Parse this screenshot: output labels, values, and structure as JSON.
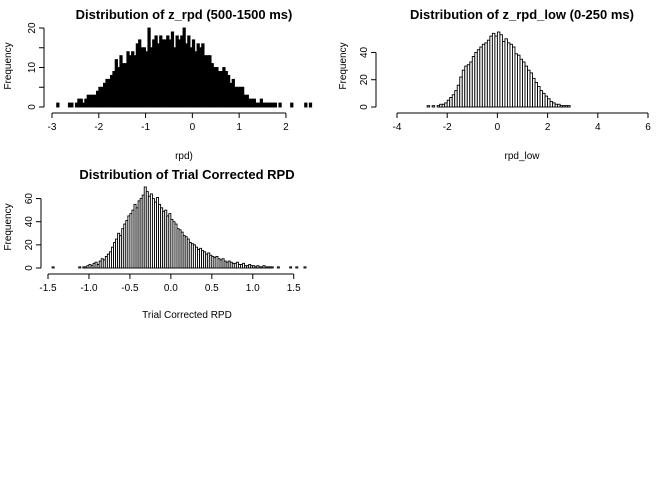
{
  "chart_data": [
    {
      "type": "bar",
      "subtype": "histogram",
      "title": "Distribution of z_rpd (500-1500 ms)",
      "xlabel": "rpd)",
      "ylabel": "Frequency",
      "xlim": [
        -3,
        2.6
      ],
      "ylim": [
        0,
        20
      ],
      "x_ticks": [
        -3,
        -2,
        -1,
        0,
        1,
        2
      ],
      "y_ticks": [
        0,
        10,
        20
      ],
      "y_tick_labels": [
        "0",
        "10",
        "20"
      ],
      "y_ticks_extra": [
        5,
        15
      ],
      "x_axis_end": 2,
      "x_range": [
        -2.9,
        2.6
      ],
      "bin_width": 0.05,
      "fill": "#000000",
      "counts": [
        1,
        0,
        0,
        0,
        0,
        1,
        1,
        0,
        1,
        2,
        2,
        1,
        2,
        3,
        3,
        3,
        3,
        4,
        5,
        5,
        6,
        7,
        7,
        8,
        9,
        12,
        10,
        13,
        11,
        11,
        14,
        13,
        14,
        13,
        16,
        17,
        15,
        15,
        14,
        20,
        15,
        17,
        18,
        16,
        18,
        17,
        17,
        18,
        17,
        19,
        15,
        18,
        17,
        18,
        20,
        16,
        18,
        15,
        17,
        14,
        16,
        15,
        16,
        13,
        13,
        13,
        11,
        10,
        10,
        9,
        9,
        10,
        9,
        8,
        6,
        7,
        5,
        5,
        5,
        5,
        3,
        3,
        2,
        2,
        2,
        1,
        1,
        2,
        1,
        1,
        1,
        1,
        1,
        1,
        0,
        1,
        0,
        0,
        0,
        0,
        1,
        0,
        0,
        0,
        0,
        0,
        1,
        0,
        1,
        0
      ]
    },
    {
      "type": "bar",
      "subtype": "histogram",
      "title": "Distribution of z_rpd_low (0-250 ms)",
      "xlabel": "rpd_low",
      "ylabel": "Frequency",
      "xlim": [
        -4,
        6
      ],
      "ylim": [
        0,
        55
      ],
      "x_ticks": [
        -4,
        -2,
        0,
        2,
        4,
        6
      ],
      "y_ticks": [
        0,
        20,
        40
      ],
      "y_tick_labels": [
        "0",
        "20",
        "40"
      ],
      "x_range": [
        -2.8,
        2.9
      ],
      "bin_width": 0.1,
      "fill": "#ffffff",
      "counts": [
        1,
        0,
        1,
        0,
        1,
        2,
        2,
        3,
        5,
        7,
        9,
        12,
        16,
        22,
        27,
        30,
        31,
        33,
        37,
        40,
        42,
        44,
        46,
        47,
        49,
        52,
        54,
        52,
        55,
        53,
        48,
        50,
        47,
        46,
        44,
        39,
        38,
        35,
        33,
        30,
        27,
        25,
        21,
        18,
        15,
        12,
        10,
        8,
        6,
        4,
        3,
        2,
        2,
        1,
        1,
        1,
        1
      ]
    },
    {
      "type": "bar",
      "subtype": "histogram",
      "title": "Distribution of Trial Corrected RPD",
      "xlabel": "Trial Corrected RPD",
      "ylabel": "Frequency",
      "xlim": [
        -1.5,
        1.65
      ],
      "ylim": [
        0,
        70
      ],
      "x_ticks": [
        -1.5,
        -1.0,
        -0.5,
        0.0,
        0.5,
        1.0,
        1.5
      ],
      "y_ticks": [
        0,
        20,
        40,
        60
      ],
      "y_tick_labels": [
        "0",
        "20",
        "40",
        "60"
      ],
      "x_tick_labels": [
        "-1.5",
        "-1.0",
        "-0.5",
        "0.0",
        "0.5",
        "1.0",
        "1.5"
      ],
      "x_range": [
        -1.45,
        1.65
      ],
      "bin_width": 0.025,
      "fill": "#ffffff",
      "counts": [
        1,
        0,
        0,
        0,
        0,
        0,
        0,
        0,
        0,
        0,
        0,
        0,
        0,
        1,
        0,
        1,
        1,
        2,
        3,
        2,
        4,
        5,
        3,
        6,
        8,
        7,
        10,
        12,
        14,
        18,
        22,
        25,
        30,
        28,
        34,
        38,
        41,
        45,
        47,
        50,
        55,
        52,
        58,
        60,
        63,
        70,
        66,
        62,
        64,
        60,
        57,
        61,
        55,
        52,
        49,
        50,
        45,
        47,
        42,
        40,
        38,
        34,
        33,
        31,
        28,
        27,
        25,
        22,
        21,
        20,
        18,
        16,
        17,
        15,
        14,
        12,
        13,
        11,
        10,
        9,
        10,
        8,
        7,
        8,
        6,
        5,
        6,
        5,
        4,
        4,
        5,
        3,
        3,
        4,
        2,
        2,
        3,
        2,
        2,
        1,
        2,
        1,
        1,
        2,
        1,
        1,
        1,
        1,
        0,
        0,
        1,
        0,
        0,
        0,
        0,
        0,
        1,
        0,
        0,
        1,
        0,
        0,
        0,
        1
      ]
    }
  ]
}
